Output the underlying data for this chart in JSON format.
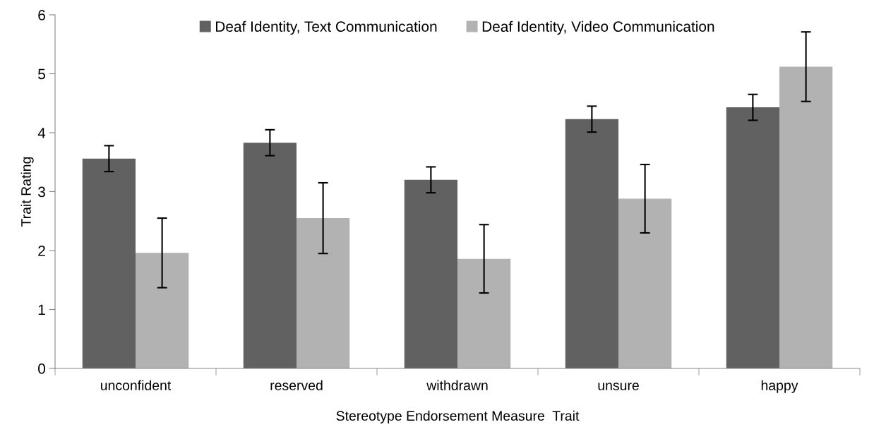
{
  "chart_data": {
    "type": "bar",
    "xlabel": "Stereotype Endorsement Measure  Trait",
    "ylabel": "Trait Rating",
    "categories": [
      "unconfident",
      "reserved",
      "withdrawn",
      "unsure",
      "happy"
    ],
    "series": [
      {
        "name": "Deaf Identity, Text Communication",
        "color": "#616161",
        "values": [
          3.56,
          3.83,
          3.2,
          4.23,
          4.43
        ],
        "errors": [
          0.22,
          0.22,
          0.22,
          0.22,
          0.22
        ]
      },
      {
        "name": "Deaf Identity, Video Communication",
        "color": "#b2b2b2",
        "values": [
          1.96,
          2.55,
          1.86,
          2.88,
          5.12
        ],
        "errors": [
          0.59,
          0.6,
          0.58,
          0.58,
          0.59
        ]
      }
    ],
    "ylim": [
      0,
      6
    ],
    "yticks": [
      0,
      1,
      2,
      3,
      4,
      5,
      6
    ],
    "grid": false,
    "legend": "top"
  }
}
